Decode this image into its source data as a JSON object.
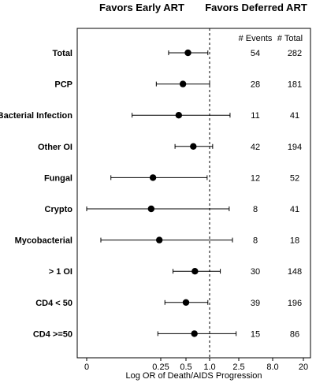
{
  "header": {
    "left": "Favors Early ART",
    "right": "Favors Deferred ART"
  },
  "columns": {
    "events": "# Events",
    "total": "# Total"
  },
  "chart_data": {
    "type": "forest",
    "xlabel": "Log OR of Death/AIDS Progression",
    "x_scale": "log",
    "reference_line": 1.0,
    "x_ticks": [
      {
        "label": "0",
        "value": 0.03
      },
      {
        "label": "0.25",
        "value": 0.25
      },
      {
        "label": "0.5",
        "value": 0.5
      },
      {
        "label": "1.0",
        "value": 1.0
      },
      {
        "label": "2.5",
        "value": 2.5
      },
      {
        "label": "8.0",
        "value": 8.0
      },
      {
        "label": "20",
        "value": 20
      }
    ],
    "xlim": [
      0.03,
      20
    ],
    "rows": [
      {
        "label": "Total",
        "or": 0.53,
        "lo": 0.31,
        "hi": 0.95,
        "events": "54",
        "total": "282"
      },
      {
        "label": "PCP",
        "or": 0.46,
        "lo": 0.22,
        "hi": 1.0,
        "events": "28",
        "total": "181"
      },
      {
        "label": "Bacterial Infection",
        "or": 0.41,
        "lo": 0.11,
        "hi": 1.9,
        "events": "11",
        "total": "41"
      },
      {
        "label": "Other OI",
        "or": 0.62,
        "lo": 0.37,
        "hi": 1.1,
        "events": "42",
        "total": "194"
      },
      {
        "label": "Fungal",
        "or": 0.2,
        "lo": 0.06,
        "hi": 0.93,
        "events": "12",
        "total": "52"
      },
      {
        "label": "Crypto",
        "or": 0.19,
        "lo": 0.03,
        "hi": 1.85,
        "events": "8",
        "total": "41"
      },
      {
        "label": "Mycobacterial",
        "or": 0.24,
        "lo": 0.045,
        "hi": 2.05,
        "events": "8",
        "total": "18"
      },
      {
        "label": "> 1 OI",
        "or": 0.65,
        "lo": 0.35,
        "hi": 1.4,
        "events": "30",
        "total": "148"
      },
      {
        "label": "CD4 < 50",
        "or": 0.5,
        "lo": 0.28,
        "hi": 0.95,
        "events": "39",
        "total": "196"
      },
      {
        "label": "CD4 >=50",
        "or": 0.64,
        "lo": 0.23,
        "hi": 2.3,
        "events": "15",
        "total": "86"
      }
    ]
  }
}
